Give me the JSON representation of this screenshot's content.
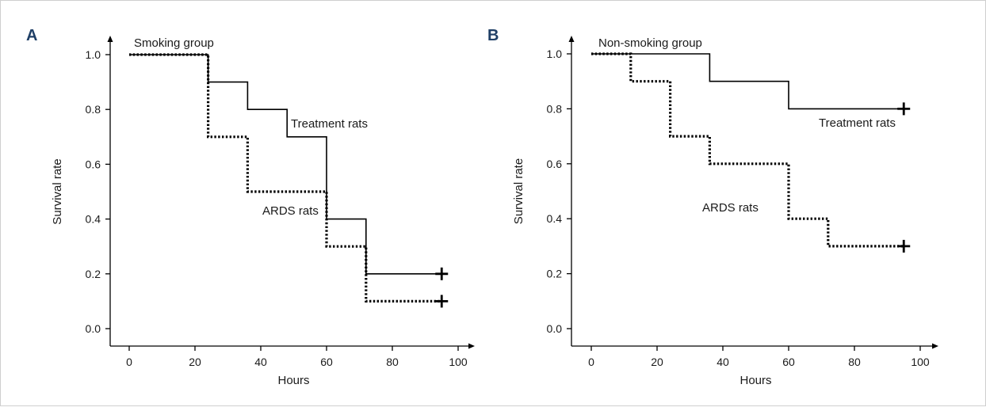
{
  "chart_data": [
    {
      "type": "line",
      "panel_label": "A",
      "title": "Smoking group",
      "xlabel": "Hours",
      "ylabel": "Survival rate",
      "xlim": [
        0,
        100
      ],
      "ylim": [
        0,
        1
      ],
      "x_ticks": [
        0,
        20,
        40,
        60,
        80,
        100
      ],
      "y_ticks": [
        "0.0",
        "0.2",
        "0.4",
        "0.6",
        "0.8",
        "1.0"
      ],
      "series": [
        {
          "name": "Treatment rats",
          "style": "solid",
          "x": [
            0,
            24,
            36,
            48,
            60,
            72,
            95
          ],
          "y": [
            1.0,
            0.9,
            0.8,
            0.7,
            0.4,
            0.2,
            0.2
          ]
        },
        {
          "name": "ARDS rats",
          "style": "dotted",
          "x": [
            0,
            24,
            36,
            60,
            72,
            95
          ],
          "y": [
            1.0,
            0.7,
            0.5,
            0.3,
            0.1,
            0.1
          ]
        }
      ]
    },
    {
      "type": "line",
      "panel_label": "B",
      "title": "Non-smoking group",
      "xlabel": "Hours",
      "ylabel": "Survival rate",
      "xlim": [
        0,
        100
      ],
      "ylim": [
        0,
        1
      ],
      "x_ticks": [
        0,
        20,
        40,
        60,
        80,
        100
      ],
      "y_ticks": [
        "0.0",
        "0.2",
        "0.4",
        "0.6",
        "0.8",
        "1.0"
      ],
      "series": [
        {
          "name": "Treatment rats",
          "style": "solid",
          "x": [
            0,
            36,
            60,
            95
          ],
          "y": [
            1.0,
            0.9,
            0.8,
            0.8
          ]
        },
        {
          "name": "ARDS rats",
          "style": "dotted",
          "x": [
            0,
            12,
            24,
            36,
            60,
            72,
            95
          ],
          "y": [
            1.0,
            0.9,
            0.7,
            0.6,
            0.4,
            0.3,
            0.3
          ]
        }
      ]
    }
  ]
}
